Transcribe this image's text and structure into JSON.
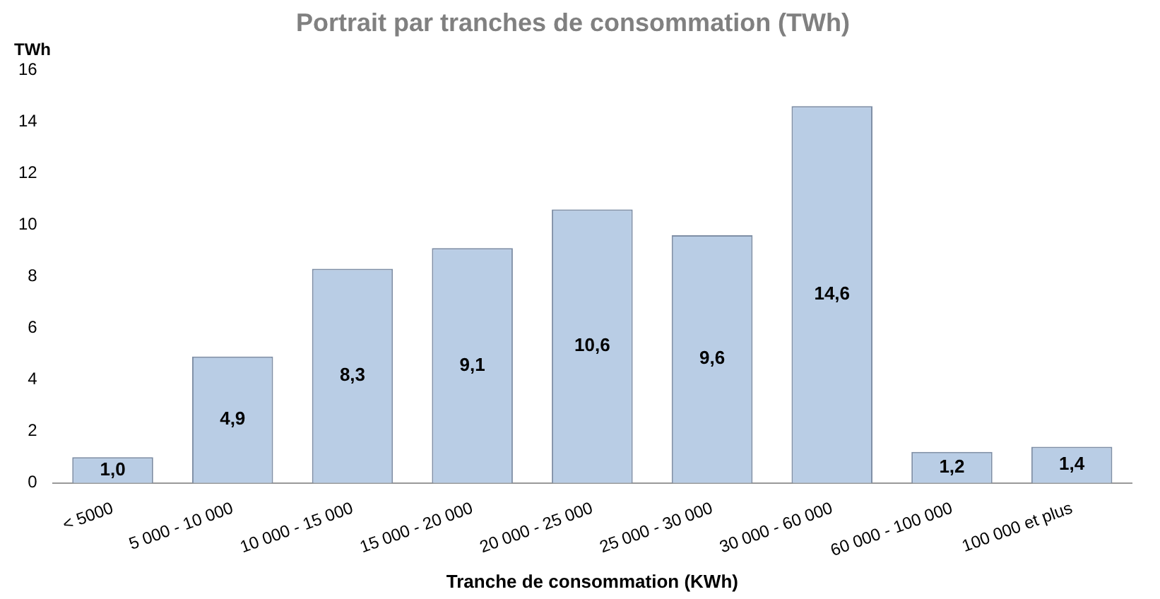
{
  "chart_data": {
    "type": "bar",
    "title": "Portrait par tranches de consommation (TWh)",
    "ylabel": "TWh",
    "xlabel": "Tranche de consommation (KWh)",
    "categories": [
      "< 5000",
      "5 000 - 10 000",
      "10 000 - 15 000",
      "15 000 - 20 000",
      "20 000 - 25 000",
      "25 000 - 30 000",
      "30 000 - 60 000",
      "60 000 - 100 000",
      "100 000 et plus"
    ],
    "values": [
      1.0,
      4.9,
      8.3,
      9.1,
      10.6,
      9.6,
      14.6,
      1.2,
      1.4
    ],
    "value_labels": [
      "1,0",
      "4,9",
      "8,3",
      "9,1",
      "10,6",
      "9,6",
      "14,6",
      "1,2",
      "1,4"
    ],
    "color": "#b9cde5",
    "ylim": [
      0,
      16
    ],
    "yticks": [
      0,
      2,
      4,
      6,
      8,
      10,
      12,
      14,
      16
    ],
    "grid": false,
    "legend": false
  }
}
